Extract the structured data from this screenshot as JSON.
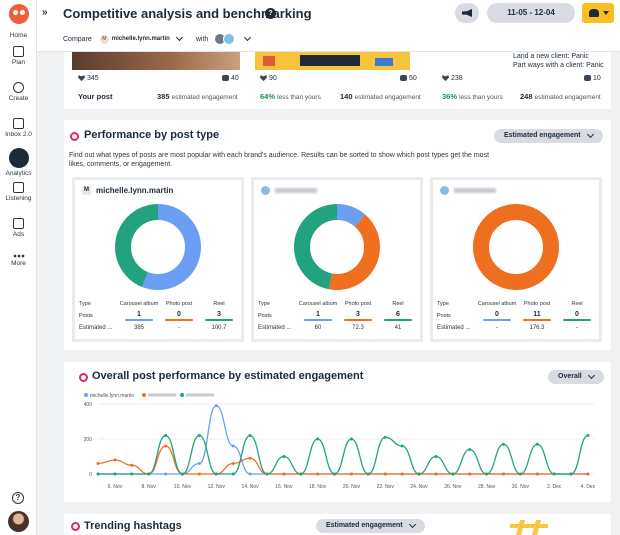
{
  "colors": {
    "accent": "#fbbf23",
    "carousel": "#6a9ff3",
    "photo": "#ee6f1f",
    "reel": "#22a27f",
    "instagram": "#d62976",
    "positive": "#1f8f4a"
  },
  "nav": [
    {
      "label": "Home",
      "icon": "home-icon"
    },
    {
      "label": "Plan",
      "icon": "calendar-icon"
    },
    {
      "label": "Create",
      "icon": "plus-circle-icon"
    },
    {
      "label": "Inbox 2.0",
      "icon": "inbox-icon"
    },
    {
      "label": "Analytics",
      "icon": "bar-chart-icon"
    },
    {
      "label": "Listening",
      "icon": "lightbulb-icon"
    },
    {
      "label": "Ads",
      "icon": "megaphone-icon"
    },
    {
      "label": "More",
      "icon": "ellipsis-icon"
    }
  ],
  "help_label": "?",
  "header": {
    "title": "Competitive analysis and benchmarking",
    "help": "?",
    "date_range": "11-05 - 12-04",
    "compare_label": "Compare",
    "account": "michelle.lynn.martin",
    "account_initial": "M",
    "with_label": "with"
  },
  "top_posts": [
    {
      "likes": "345",
      "comments": "40",
      "lead": "Your post",
      "value": "385",
      "suffix": "estimated engagement"
    },
    {
      "likes": "90",
      "comments": "50",
      "pct": "64%",
      "pct_text": "less than yours",
      "value": "140",
      "suffix": "estimated engagement"
    },
    {
      "likes": "238",
      "comments": "10",
      "pct": "36%",
      "pct_text": "less than yours",
      "value": "248",
      "suffix": "estimated engagement"
    }
  ],
  "caption_lines": [
    "Land a new client: Panic",
    "Part ways with a client: Panic"
  ],
  "performance": {
    "title": "Performance by post type",
    "sort_label": "Estimated engagement",
    "description": "Find out what types of posts are most popular with each brand's audience. Results can be sorted to show which post types get the most likes, comments, or engagement.",
    "col_headers": [
      "Type",
      "Carousel album",
      "Photo post",
      "Reel"
    ],
    "posts_label": "Posts",
    "est_label": "Estimated ...",
    "brands": [
      {
        "name": "michelle.lynn.martin",
        "initial": "M",
        "posts": [
          "1",
          "0",
          "3"
        ],
        "est": [
          "385",
          "-",
          "100.7"
        ]
      },
      {
        "name": "",
        "initial": "",
        "posts": [
          "1",
          "3",
          "6"
        ],
        "est": [
          "60",
          "72.3",
          "41"
        ]
      },
      {
        "name": "",
        "initial": "",
        "posts": [
          "0",
          "11",
          "0"
        ],
        "est": [
          "-",
          "176.3",
          "-"
        ]
      }
    ]
  },
  "overall": {
    "title": "Overall post performance by estimated engagement",
    "filter_label": "Overall",
    "legend": [
      "michelle.lynn.martin",
      "",
      ""
    ]
  },
  "trending": {
    "title": "Trending hashtags",
    "sort_label": "Estimated engagement"
  },
  "chart_data": [
    {
      "type": "pie",
      "title": "michelle.lynn.martin",
      "labels": [
        "Carousel album",
        "Photo post",
        "Reel"
      ],
      "values": [
        385,
        0,
        302.1
      ]
    },
    {
      "type": "pie",
      "title": "",
      "labels": [
        "Carousel album",
        "Photo post",
        "Reel"
      ],
      "values": [
        60,
        216.9,
        246
      ]
    },
    {
      "type": "pie",
      "title": "",
      "labels": [
        "Carousel album",
        "Photo post",
        "Reel"
      ],
      "values": [
        0,
        1939.3,
        0
      ]
    },
    {
      "type": "line",
      "title": "Overall post performance by estimated engagement",
      "ylim": [
        0,
        400
      ],
      "yticks": [
        0,
        200,
        400
      ],
      "x_labels": [
        "6. Nov",
        "8. Nov",
        "10. Nov",
        "12. Nov",
        "14. Nov",
        "16. Nov",
        "18. Nov",
        "20. Nov",
        "22. Nov",
        "24. Nov",
        "26. Nov",
        "28. Nov",
        "30. Nov",
        "2. Dec",
        "4. Dec"
      ],
      "x": [
        "5. Nov",
        "6. Nov",
        "7. Nov",
        "8. Nov",
        "9. Nov",
        "10. Nov",
        "11. Nov",
        "12. Nov",
        "13. Nov",
        "14. Nov",
        "15. Nov",
        "16. Nov",
        "17. Nov",
        "18. Nov",
        "19. Nov",
        "20. Nov",
        "21. Nov",
        "22. Nov",
        "23. Nov",
        "24. Nov",
        "25. Nov",
        "26. Nov",
        "27. Nov",
        "28. Nov",
        "29. Nov",
        "30. Nov",
        "1. Dec",
        "2. Dec",
        "3. Dec",
        "4. Dec"
      ],
      "series": [
        {
          "name": "michelle.lynn.martin",
          "color": "#6a9ff3",
          "values": [
            0,
            0,
            0,
            0,
            0,
            0,
            60,
            390,
            160,
            0,
            0,
            0,
            0,
            0,
            0,
            0,
            0,
            0,
            0,
            0,
            0,
            0,
            0,
            0,
            0,
            0,
            0,
            0,
            0,
            0
          ]
        },
        {
          "name": "",
          "color": "#ee6f1f",
          "values": [
            60,
            80,
            50,
            0,
            160,
            0,
            0,
            0,
            60,
            90,
            0,
            0,
            0,
            0,
            0,
            0,
            0,
            0,
            0,
            0,
            0,
            0,
            0,
            0,
            0,
            0,
            0,
            0,
            0,
            0
          ]
        },
        {
          "name": "",
          "color": "#22a27f",
          "values": [
            0,
            0,
            0,
            0,
            220,
            0,
            220,
            0,
            0,
            220,
            0,
            100,
            0,
            200,
            0,
            200,
            0,
            210,
            160,
            0,
            100,
            0,
            140,
            0,
            170,
            0,
            170,
            0,
            0,
            220
          ]
        }
      ]
    }
  ]
}
